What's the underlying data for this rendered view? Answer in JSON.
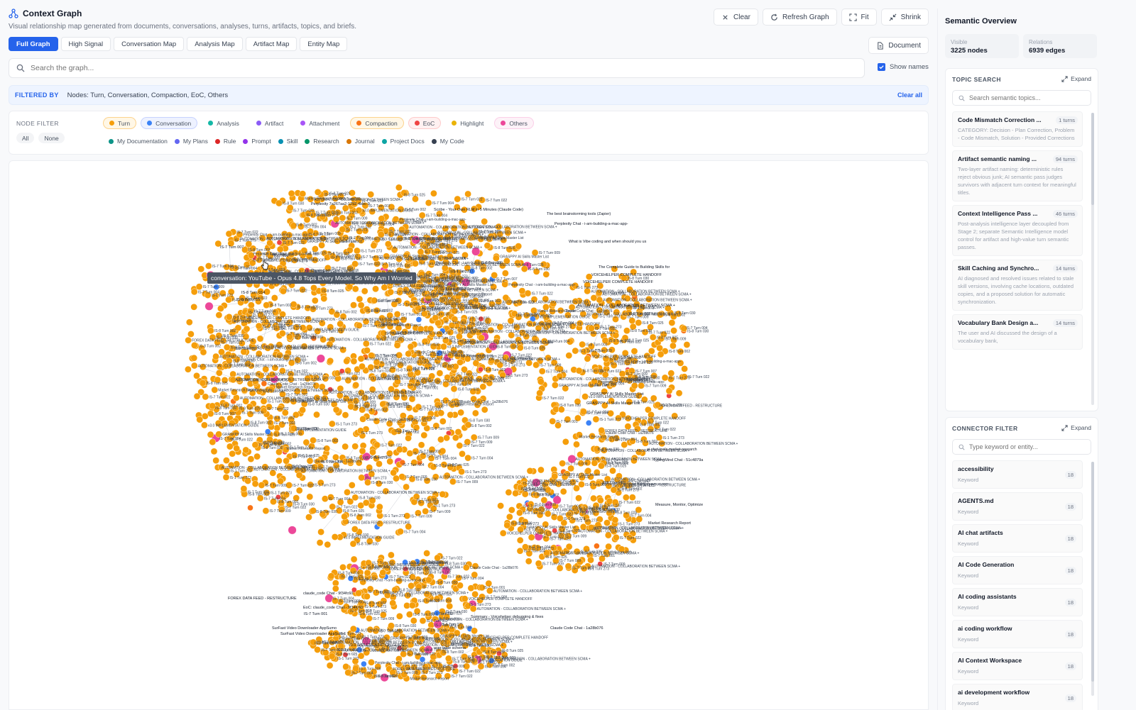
{
  "header": {
    "title": "Context Graph",
    "subtitle": "Visual relationship map generated from documents, conversations, analyses, turns, artifacts, topics, and briefs."
  },
  "actions": {
    "clear": "Clear",
    "refresh": "Refresh Graph",
    "fit": "Fit",
    "shrink": "Shrink"
  },
  "tabs": [
    "Full Graph",
    "High Signal",
    "Conversation Map",
    "Analysis Map",
    "Artifact Map",
    "Entity Map"
  ],
  "document_btn": "Document",
  "search": {
    "placeholder": "Search the graph..."
  },
  "show_names": "Show names",
  "filtered": {
    "label": "FILTERED BY",
    "value": "Nodes: Turn, Conversation, Compaction, EoC, Others",
    "clear_all": "Clear all"
  },
  "node_filter": {
    "label": "NODE FILTER",
    "all": "All",
    "none": "None",
    "row1": [
      {
        "label": "Turn",
        "color": "#f59e0b",
        "active": true,
        "cls": "turn"
      },
      {
        "label": "Conversation",
        "color": "#3b82f6",
        "active": true,
        "cls": "conv"
      },
      {
        "label": "Analysis",
        "color": "#14b8a6",
        "active": false,
        "cls": ""
      },
      {
        "label": "Artifact",
        "color": "#8b5cf6",
        "active": false,
        "cls": ""
      },
      {
        "label": "Attachment",
        "color": "#a855f7",
        "active": false,
        "cls": ""
      },
      {
        "label": "Compaction",
        "color": "#f97316",
        "active": true,
        "cls": "comp"
      },
      {
        "label": "EoC",
        "color": "#ef4444",
        "active": true,
        "cls": "eoc"
      },
      {
        "label": "Highlight",
        "color": "#eab308",
        "active": false,
        "cls": ""
      },
      {
        "label": "Others",
        "color": "#ec4899",
        "active": true,
        "cls": "others"
      }
    ],
    "row2": [
      {
        "label": "My Documentation",
        "color": "#0d9488"
      },
      {
        "label": "My Plans",
        "color": "#6366f1"
      },
      {
        "label": "Rule",
        "color": "#dc2626"
      },
      {
        "label": "Prompt",
        "color": "#9333ea"
      },
      {
        "label": "Skill",
        "color": "#0891b2"
      },
      {
        "label": "Research",
        "color": "#059669"
      },
      {
        "label": "Journal",
        "color": "#d97706"
      },
      {
        "label": "Project Docs",
        "color": "#0ea5a4"
      },
      {
        "label": "My Code",
        "color": "#374151"
      }
    ]
  },
  "tooltip": "conversation: YouTube - Opus 4.8 Tops Every Model. So Why Am I Worried",
  "graph_labels": [
    "IS-7 Turn 007",
    "IS-8 Turn 014",
    "IS-8 Turn 015",
    "FOREX DATA FEED - RESTRUCTURE",
    "claude_code Chat - 9f34fc60",
    "EoC: claude_code Chat - 9f34fc60",
    "IS-7 Turn 001",
    "SurFast Video Downloader AppSumo",
    "SurFast Video Downloader AppSumo",
    "v3.0 IMPLEMENTATION GUIDE",
    "user table schema",
    "Summary - Voicehelper debugging & fixes",
    "Claude Code Chat - 1a28b076",
    "ai chat tools market research",
    "TypingMind Chat - 51c4879a",
    "Market Research Report",
    "Measure, Monitor, Optimize",
    "VOICEHELPER COMPLETE HANDOFF",
    "VOICEHELPER COMPLETE HANDOFF",
    "The Complete Guide to Building Skills for",
    "What is Vibe coding and when should you us",
    "GRASPPY AI Skills Master List",
    "GRASPPY AI Skills Master List",
    "The best brainstorming tools (Zapier)",
    "Perplexity Chat - i-am-building-a-mac-app-",
    "Scribe - Your Own RLM in 5 Minutes (Claude Code)",
    "Perplexity 7a267aa2-1292-4bbc-9",
    "IS-1 Turn 273",
    "IS-7 Turn 004",
    "IS-8 Turn 002",
    "IS-7 Turn 022",
    "IS-8 Turn 025",
    "IS-7 Turn 009",
    "IS-8 Turn 030",
    "AUTOMATION - COLLABORATION BETWEEN SCMA +",
    "YouTube"
  ],
  "panel": {
    "title": "Semantic Overview",
    "visible_label": "Visible",
    "visible_value": "3225 nodes",
    "relations_label": "Relations",
    "relations_value": "6939 edges",
    "topic_search": {
      "title": "TOPIC SEARCH",
      "expand": "Expand",
      "placeholder": "Search semantic topics...",
      "items": [
        {
          "title": "Code Mismatch Correction ...",
          "count": "1 turns",
          "desc": "CATEGORY: Decision - Plan Correction, Problem - Code Mismatch, Solution - Provided Corrections"
        },
        {
          "title": "Artifact semantic naming ...",
          "count": "94 turns",
          "desc": "Two-layer artifact naming: deterministic rules reject obvious junk; AI semantic pass judges survivors with adjacent turn context for meaningful titles."
        },
        {
          "title": "Context Intelligence Pass ...",
          "count": "46 turns",
          "desc": "Post-analysis intelligence layer decoupled from Stage 2; separate Semantic Intelligence model control for artifact and high-value turn semantic passes."
        },
        {
          "title": "Skill Caching and Synchro...",
          "count": "14 turns",
          "desc": "AI diagnosed and resolved issues related to stale skill versions, involving cache locations, outdated copies, and a proposed solution for automatic synchronization."
        },
        {
          "title": "Vocabulary Bank Design a...",
          "count": "14 turns",
          "desc": "The user and AI discussed the design of a vocabulary bank,"
        }
      ]
    },
    "connector_filter": {
      "title": "CONNECTOR FILTER",
      "expand": "Expand",
      "placeholder": "Type keyword or entity...",
      "items": [
        {
          "title": "accessibility",
          "sub": "Keyword",
          "count": "18"
        },
        {
          "title": "AGENTS.md",
          "sub": "Keyword",
          "count": "18"
        },
        {
          "title": "AI chat artifacts",
          "sub": "Keyword",
          "count": "18"
        },
        {
          "title": "AI Code Generation",
          "sub": "Keyword",
          "count": "18"
        },
        {
          "title": "AI coding assistants",
          "sub": "Keyword",
          "count": "18"
        },
        {
          "title": "ai coding workflow",
          "sub": "Keyword",
          "count": "18"
        },
        {
          "title": "AI Context Workspace",
          "sub": "Keyword",
          "count": "18"
        },
        {
          "title": "ai development workflow",
          "sub": "Keyword",
          "count": "18"
        }
      ]
    }
  },
  "colors": {
    "turn": "#f59e0b",
    "conversation": "#3b82f6",
    "others": "#ec4899",
    "eoc": "#ef4444",
    "compaction": "#f97316",
    "accent": "#2563eb"
  }
}
